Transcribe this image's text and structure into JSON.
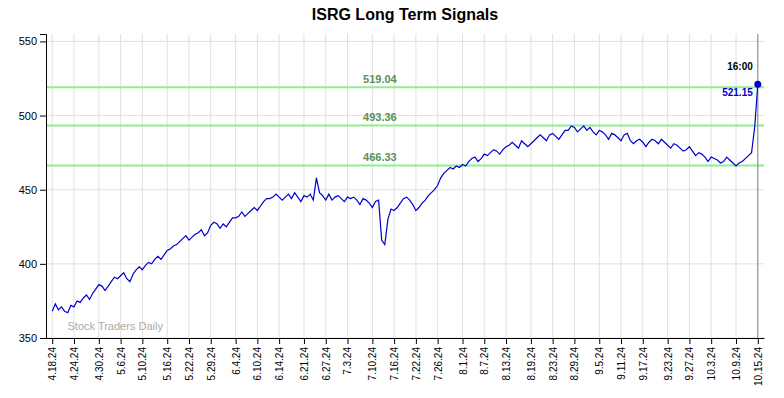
{
  "chart_data": {
    "type": "line",
    "title": "ISRG Long Term Signals",
    "watermark": "Stock Traders Daily",
    "color": "#0000CC",
    "grid": true,
    "ylim": [
      350,
      555
    ],
    "yticks": [
      350,
      400,
      450,
      500,
      550
    ],
    "hlines": [
      {
        "value": 519.04,
        "color": "#90EE90"
      },
      {
        "value": 493.36,
        "color": "#90EE90"
      },
      {
        "value": 466.33,
        "color": "#90EE90"
      }
    ],
    "annotations": [
      {
        "text": "16:00"
      }
    ],
    "categories": [
      "4.18.24",
      null,
      null,
      null,
      null,
      null,
      null,
      "4.24.24",
      null,
      null,
      null,
      null,
      null,
      null,
      null,
      "4.30.24",
      null,
      null,
      null,
      null,
      null,
      null,
      "5.6.24",
      null,
      null,
      null,
      null,
      null,
      null,
      "5.10.24",
      null,
      null,
      null,
      null,
      null,
      null,
      null,
      "5.16.24",
      null,
      null,
      null,
      null,
      null,
      null,
      "5.22.24",
      null,
      null,
      null,
      null,
      null,
      null,
      "5.29.24",
      null,
      null,
      null,
      null,
      null,
      null,
      null,
      "6.4.24",
      null,
      null,
      null,
      null,
      null,
      null,
      "6.10.24",
      null,
      null,
      null,
      null,
      null,
      null,
      "6.14.24",
      null,
      null,
      null,
      null,
      null,
      null,
      null,
      "6.21.24",
      null,
      null,
      null,
      null,
      null,
      null,
      "6.27.24",
      null,
      null,
      null,
      null,
      null,
      null,
      "7.3.24",
      null,
      null,
      null,
      null,
      null,
      null,
      null,
      "7.10.24",
      null,
      null,
      null,
      null,
      null,
      null,
      "7.16.24",
      null,
      null,
      null,
      null,
      null,
      null,
      "7.22.24",
      null,
      null,
      null,
      null,
      null,
      null,
      "7.26.24",
      null,
      null,
      null,
      null,
      null,
      null,
      null,
      "8.1.24",
      null,
      null,
      null,
      null,
      null,
      null,
      "8.7.24",
      null,
      null,
      null,
      null,
      null,
      null,
      "8.13.24",
      null,
      null,
      null,
      null,
      null,
      null,
      null,
      "8.19.24",
      null,
      null,
      null,
      null,
      null,
      null,
      "8.23.24",
      null,
      null,
      null,
      null,
      null,
      null,
      "8.29.24",
      null,
      null,
      null,
      null,
      null,
      null,
      null,
      "9.5.24",
      null,
      null,
      null,
      null,
      null,
      null,
      "9.11.24",
      null,
      null,
      null,
      null,
      null,
      null,
      "9.17.24",
      null,
      null,
      null,
      null,
      null,
      null,
      null,
      "9.23.24",
      null,
      null,
      null,
      null,
      null,
      null,
      "9.27.24",
      null,
      null,
      null,
      null,
      null,
      null,
      "10.3.24",
      null,
      null,
      null,
      null,
      null,
      null,
      null,
      "10.9.24",
      null,
      null,
      null,
      null,
      null,
      null,
      "10.15.24"
    ],
    "values": [
      368,
      373,
      369,
      371,
      368,
      367,
      372,
      371,
      375,
      374,
      377,
      379,
      376,
      380,
      383,
      386,
      385,
      382,
      385,
      388,
      391,
      390,
      392,
      394,
      390,
      388,
      393,
      396,
      398,
      396,
      399,
      401,
      400,
      403,
      405,
      403,
      406,
      409,
      410,
      412,
      413,
      415,
      417,
      419,
      416,
      418,
      420,
      421,
      423,
      419,
      421,
      426,
      428,
      427,
      424,
      427,
      425,
      428,
      431,
      431,
      432,
      435,
      432,
      434,
      436,
      438,
      436,
      439,
      442,
      444,
      444,
      445,
      447,
      445,
      443,
      445,
      447,
      444,
      448,
      445,
      442,
      446,
      445,
      447,
      443,
      458,
      448,
      446,
      443,
      447,
      443,
      445,
      446,
      444,
      442,
      445,
      444,
      445,
      443,
      440,
      444,
      443,
      441,
      438,
      442,
      443,
      416,
      413,
      430,
      437,
      436,
      438,
      441,
      444,
      445,
      443,
      440,
      436,
      438,
      441,
      443,
      446,
      448,
      450,
      453,
      458,
      461,
      463,
      465,
      464,
      466,
      465,
      467,
      466,
      469,
      471,
      472,
      469,
      471,
      474,
      473,
      475,
      477,
      476,
      474,
      477,
      479,
      480,
      482,
      480,
      478,
      483,
      481,
      479,
      481,
      483,
      485,
      487,
      485,
      483,
      487,
      488,
      486,
      484,
      487,
      490,
      490,
      493,
      492,
      489,
      491,
      493,
      490,
      492,
      489,
      487,
      490,
      489,
      487,
      484,
      488,
      487,
      485,
      483,
      487,
      488,
      483,
      481,
      483,
      484,
      482,
      479,
      482,
      484,
      483,
      481,
      484,
      482,
      480,
      478,
      481,
      480,
      478,
      476,
      477,
      479,
      476,
      473,
      475,
      474,
      472,
      469,
      472,
      471,
      470,
      468,
      469,
      472,
      470,
      468,
      466,
      468,
      469,
      471,
      473,
      475,
      492,
      521.15
    ]
  }
}
